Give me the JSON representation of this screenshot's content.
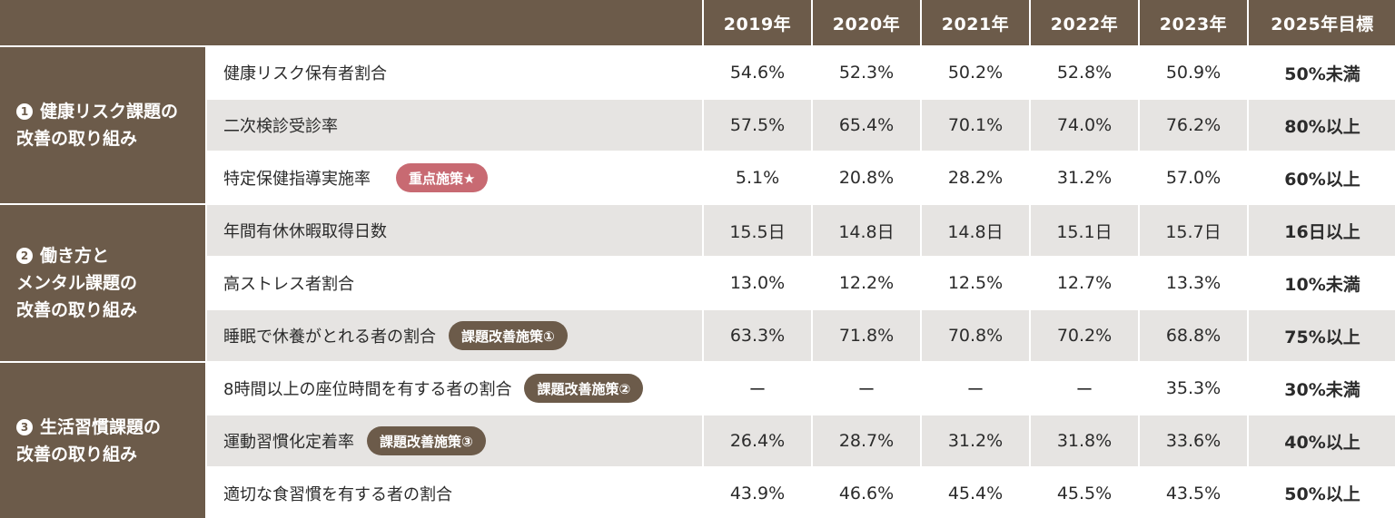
{
  "headers": [
    "2019年",
    "2020年",
    "2021年",
    "2022年",
    "2023年",
    "2025年目標"
  ],
  "groups": [
    {
      "num": "1",
      "lines": [
        "健康リスク課題の",
        "改善の取り組み"
      ]
    },
    {
      "num": "2",
      "lines": [
        "働き方と",
        "メンタル課題の",
        "改善の取り組み"
      ]
    },
    {
      "num": "3",
      "lines": [
        "生活習慣課題の",
        "改善の取り組み"
      ]
    }
  ],
  "rows": [
    {
      "label": "健康リスク保有者割合",
      "badge": "",
      "values": [
        "54.6%",
        "52.3%",
        "50.2%",
        "52.8%",
        "50.9%"
      ],
      "target": "50%未満"
    },
    {
      "label": "二次検診受診率",
      "badge": "",
      "values": [
        "57.5%",
        "65.4%",
        "70.1%",
        "74.0%",
        "76.2%"
      ],
      "target": "80%以上"
    },
    {
      "label": "特定保健指導実施率",
      "badge": "重点施策★",
      "values": [
        "5.1%",
        "20.8%",
        "28.2%",
        "31.2%",
        "57.0%"
      ],
      "target": "60%以上"
    },
    {
      "label": "年間有休休暇取得日数",
      "badge": "",
      "values": [
        "15.5日",
        "14.8日",
        "14.8日",
        "15.1日",
        "15.7日"
      ],
      "target": "16日以上"
    },
    {
      "label": "高ストレス者割合",
      "badge": "",
      "values": [
        "13.0%",
        "12.2%",
        "12.5%",
        "12.7%",
        "13.3%"
      ],
      "target": "10%未満"
    },
    {
      "label": "睡眠で休養がとれる者の割合",
      "badge": "課題改善施策①",
      "values": [
        "63.3%",
        "71.8%",
        "70.8%",
        "70.2%",
        "68.8%"
      ],
      "target": "75%以上"
    },
    {
      "label": "8時間以上の座位時間を有する者の割合",
      "badge": "課題改善施策②",
      "values": [
        "ー",
        "ー",
        "ー",
        "ー",
        "35.3%"
      ],
      "target": "30%未満"
    },
    {
      "label": "運動習慣化定着率",
      "badge": "課題改善施策③",
      "values": [
        "26.4%",
        "28.7%",
        "31.2%",
        "31.8%",
        "33.6%"
      ],
      "target": "40%以上"
    },
    {
      "label": "適切な食習慣を有する者の割合",
      "badge": "",
      "values": [
        "43.9%",
        "46.6%",
        "45.4%",
        "45.5%",
        "43.5%"
      ],
      "target": "50%以上"
    }
  ],
  "colors": {
    "header_bg": "#6c5b4a",
    "row_gray": "#e6e4e2",
    "badge_red": "#c86a72",
    "badge_dark": "#6c5b4a"
  }
}
